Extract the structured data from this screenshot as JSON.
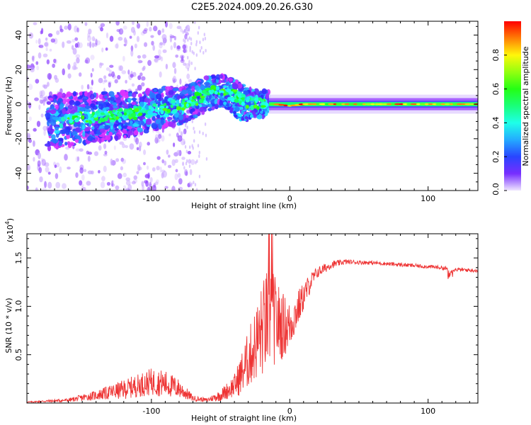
{
  "title": "C2E5.2024.009.20.26.G30",
  "chart_data": [
    {
      "type": "heatmap",
      "xlabel": "Height of straight line (km)",
      "ylabel": "Frequency (Hz)",
      "xlim": [
        -190,
        136
      ],
      "ylim": [
        -50,
        48
      ],
      "xticks": [
        -100,
        0,
        100
      ],
      "xtick_labels": [
        "-100",
        "0",
        "100"
      ],
      "yticks": [
        -40,
        -20,
        0,
        20,
        40
      ],
      "ytick_labels": [
        "-40",
        "-20",
        "0",
        "20",
        "40"
      ],
      "colorbar": {
        "label": "Normalized spectral amplitude",
        "range": [
          0,
          1
        ],
        "ticks": [
          0.0,
          0.2,
          0.4,
          0.6,
          0.8
        ],
        "tick_labels": [
          "0.0",
          "0.2",
          "0.4",
          "0.6",
          "0.8"
        ]
      },
      "ridge": [
        {
          "x": -170,
          "f": -10
        },
        {
          "x": -150,
          "f": -8
        },
        {
          "x": -130,
          "f": -7
        },
        {
          "x": -110,
          "f": -5
        },
        {
          "x": -90,
          "f": -2
        },
        {
          "x": -75,
          "f": 0
        },
        {
          "x": -60,
          "f": 6
        },
        {
          "x": -50,
          "f": 8
        },
        {
          "x": -40,
          "f": 5
        },
        {
          "x": -30,
          "f": 1
        },
        {
          "x": -20,
          "f": 0
        },
        {
          "x": -10,
          "f": 0
        },
        {
          "x": 0,
          "f": -1
        },
        {
          "x": 10,
          "f": 0
        },
        {
          "x": 20,
          "f": 0
        },
        {
          "x": 50,
          "f": 0
        },
        {
          "x": 80,
          "f": 0
        },
        {
          "x": 110,
          "f": 0
        },
        {
          "x": 136,
          "f": 0
        }
      ],
      "lower_branch": [
        {
          "x": -50,
          "f": 5
        },
        {
          "x": -45,
          "f": 0
        },
        {
          "x": -40,
          "f": -5
        },
        {
          "x": -35,
          "f": -8
        },
        {
          "x": -30,
          "f": -8
        },
        {
          "x": -25,
          "f": -5
        }
      ]
    },
    {
      "type": "line",
      "xlabel": "Height of straight line (km)",
      "ylabel": "SNR (10 * v/v)",
      "y_multiplier": "(x10",
      "y_multiplier_exp": "4",
      "y_multiplier_close": ")",
      "xlim": [
        -190,
        136
      ],
      "ylim": [
        0,
        1.75
      ],
      "xticks": [
        -100,
        0,
        100
      ],
      "xtick_labels": [
        "-100",
        "0",
        "100"
      ],
      "yticks": [
        0.5,
        1.0,
        1.5
      ],
      "ytick_labels": [
        "0.5",
        "1.0",
        "1.5"
      ],
      "color": "#ee3333",
      "series": [
        {
          "x": [
            -190,
            -160,
            -140,
            -120,
            -110,
            -100,
            -90,
            -80,
            -70,
            -60,
            -50,
            -40,
            -35,
            -30,
            -25,
            -20,
            -15,
            -10,
            -5,
            0,
            5,
            10,
            15,
            20,
            30,
            40,
            60,
            80,
            100,
            110,
            115,
            120,
            136
          ],
          "y": [
            0.01,
            0.03,
            0.08,
            0.14,
            0.18,
            0.22,
            0.2,
            0.15,
            0.05,
            0.03,
            0.08,
            0.18,
            0.3,
            0.45,
            0.6,
            0.75,
            0.9,
            0.85,
            0.8,
            0.8,
            0.95,
            1.1,
            1.25,
            1.35,
            1.43,
            1.46,
            1.45,
            1.43,
            1.41,
            1.4,
            1.38,
            1.38,
            1.37
          ],
          "noise": [
            0.005,
            0.02,
            0.05,
            0.1,
            0.12,
            0.14,
            0.14,
            0.1,
            0.03,
            0.02,
            0.06,
            0.12,
            0.22,
            0.3,
            0.38,
            0.5,
            0.55,
            0.45,
            0.35,
            0.25,
            0.2,
            0.15,
            0.1,
            0.06,
            0.04,
            0.025,
            0.02,
            0.02,
            0.02,
            0.02,
            0.03,
            0.02,
            0.02
          ]
        }
      ]
    }
  ]
}
